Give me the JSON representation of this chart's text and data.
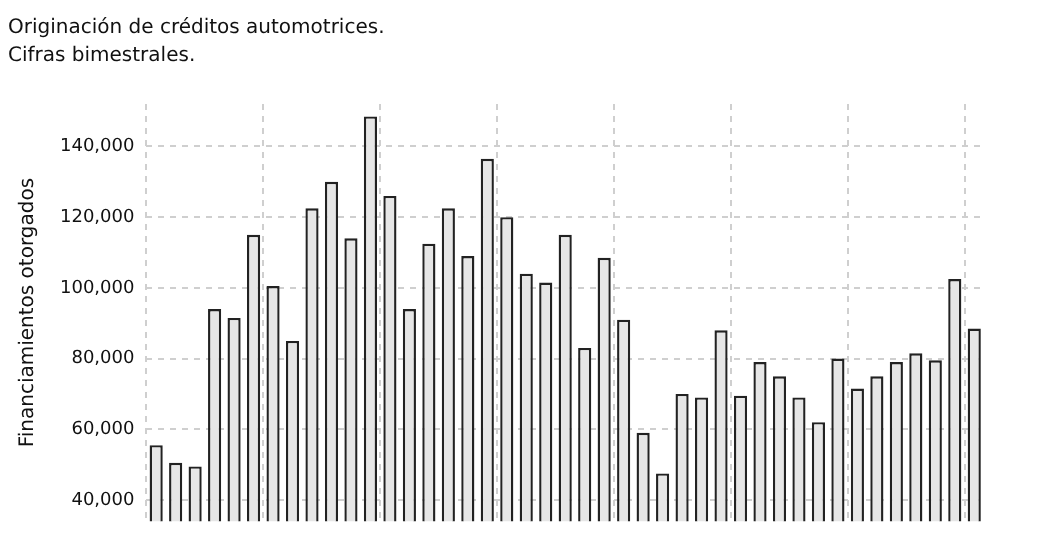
{
  "chart_data": {
    "type": "bar",
    "title": "Originación de créditos automotrices.",
    "subtitle": "Cifras bimestrales.",
    "ylabel": "Financiamientos otorgados",
    "categories": [
      null,
      null,
      null,
      null,
      null,
      null,
      null,
      null,
      null,
      null,
      null,
      null,
      null,
      null,
      null,
      null,
      null,
      null,
      null,
      null,
      null,
      null,
      null,
      null,
      null,
      null,
      null,
      null,
      null,
      null,
      null,
      null,
      null,
      null,
      null,
      null,
      null,
      null,
      null,
      null,
      null,
      null,
      null
    ],
    "values": [
      55500,
      50500,
      49500,
      94000,
      91500,
      115000,
      100500,
      85000,
      122500,
      130000,
      114000,
      148500,
      126000,
      94000,
      112500,
      122500,
      109000,
      136500,
      120000,
      104000,
      101500,
      115000,
      83000,
      108500,
      91000,
      59000,
      47500,
      70000,
      69000,
      88000,
      69500,
      79000,
      75000,
      69000,
      62000,
      80000,
      71500,
      75000,
      79000,
      81500,
      79500,
      102500,
      88500
    ],
    "color": "#e6e6e6",
    "ylim": [
      34000,
      152000
    ],
    "yticks": [
      {
        "value": 40000,
        "label": "40,000"
      },
      {
        "value": 60000,
        "label": "60,000"
      },
      {
        "value": 80000,
        "label": "80,000"
      },
      {
        "value": 100000,
        "label": "100,000"
      },
      {
        "value": 120000,
        "label": "120,000"
      },
      {
        "value": 140000,
        "label": "140,000"
      }
    ],
    "grid": true,
    "tick_labels": "y",
    "legend": false
  }
}
